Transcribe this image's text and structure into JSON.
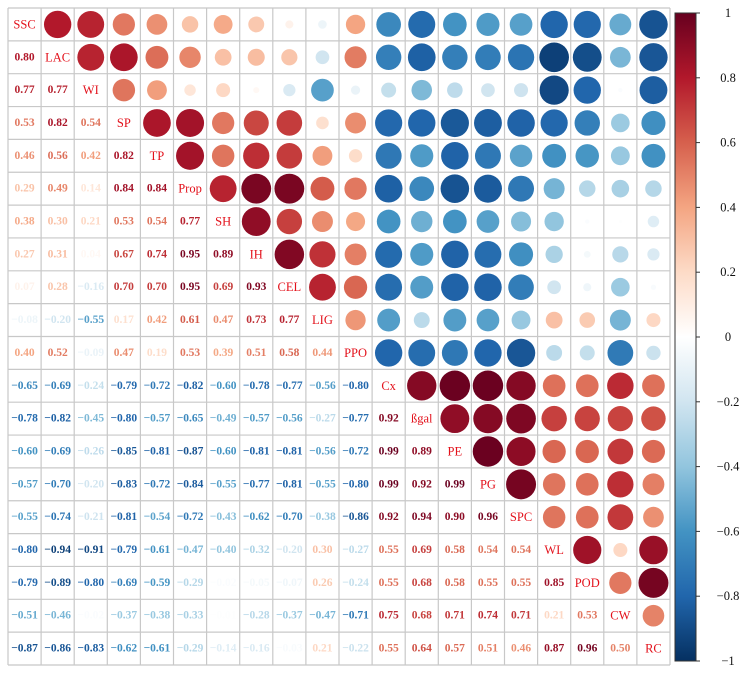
{
  "chart_data": {
    "type": "heatmap",
    "variables": [
      "SSC",
      "LAC",
      "WI",
      "SP",
      "TP",
      "Prop",
      "SH",
      "IH",
      "CEL",
      "LIG",
      "PPO",
      "Cx",
      "ßgal",
      "PE",
      "PG",
      "SPC",
      "WL",
      "POD",
      "CW",
      "RC"
    ],
    "lower_triangle_labels": [
      [],
      [
        "0.80"
      ],
      [
        "0.77",
        "0.77"
      ],
      [
        "0.53",
        "0.82",
        "0.54"
      ],
      [
        "0.46",
        "0.56",
        "0.42",
        "0.82"
      ],
      [
        "0.29",
        "0.49",
        "0.14",
        "0.84",
        "0.84"
      ],
      [
        "0.38",
        "0.30",
        "0.21",
        "0.53",
        "0.54",
        "0.77"
      ],
      [
        "0.27",
        "0.31",
        "0.04",
        "0.67",
        "0.74",
        "0.95",
        "0.89"
      ],
      [
        "0.07",
        "0.28",
        "−0.16",
        "0.70",
        "0.70",
        "0.95",
        "0.69",
        "0.93"
      ],
      [
        "−0.08",
        "−0.20",
        "−0.55",
        "0.17",
        "0.42",
        "0.61",
        "0.47",
        "0.73",
        "0.77"
      ],
      [
        "0.40",
        "0.52",
        "−0.09",
        "0.47",
        "0.19",
        "0.53",
        "0.39",
        "0.51",
        "0.58",
        "0.44"
      ],
      [
        "−0.65",
        "−0.69",
        "−0.24",
        "−0.79",
        "−0.72",
        "−0.82",
        "−0.60",
        "−0.78",
        "−0.77",
        "−0.56",
        "−0.80"
      ],
      [
        "−0.78",
        "−0.82",
        "−0.45",
        "−0.80",
        "−0.57",
        "−0.65",
        "−0.49",
        "−0.57",
        "−0.56",
        "−0.27",
        "−0.77",
        "0.92"
      ],
      [
        "−0.60",
        "−0.69",
        "−0.26",
        "−0.85",
        "−0.81",
        "−0.87",
        "−0.60",
        "−0.81",
        "−0.81",
        "−0.56",
        "−0.72",
        "0.99",
        "0.89"
      ],
      [
        "−0.57",
        "−0.70",
        "−0.20",
        "−0.83",
        "−0.72",
        "−0.84",
        "−0.55",
        "−0.77",
        "−0.81",
        "−0.55",
        "−0.80",
        "0.99",
        "0.92",
        "0.99"
      ],
      [
        "−0.55",
        "−0.74",
        "−0.21",
        "−0.81",
        "−0.54",
        "−0.72",
        "−0.43",
        "−0.62",
        "−0.70",
        "−0.38",
        "−0.86",
        "0.92",
        "0.94",
        "0.90",
        "0.96"
      ],
      [
        "−0.80",
        "−0.94",
        "−0.91",
        "−0.79",
        "−0.61",
        "−0.47",
        "−0.40",
        "−0.32",
        "−0.20",
        "0.30",
        "−0.27",
        "0.55",
        "0.69",
        "0.58",
        "0.54",
        "0.54"
      ],
      [
        "−0.79",
        "−0.89",
        "−0.80",
        "−0.69",
        "−0.59",
        "−0.29",
        "−0.02",
        "−0.05",
        "−0.07",
        "0.26",
        "−0.24",
        "0.55",
        "0.68",
        "0.58",
        "0.55",
        "0.55",
        "0.85"
      ],
      [
        "−0.51",
        "−0.46",
        "−0.02",
        "−0.37",
        "−0.38",
        "−0.33",
        "−0.01",
        "−0.28",
        "−0.37",
        "−0.47",
        "−0.71",
        "0.75",
        "0.68",
        "0.71",
        "0.74",
        "0.71",
        "0.21",
        "0.53"
      ],
      [
        "−0.87",
        "−0.86",
        "−0.83",
        "−0.62",
        "−0.61",
        "−0.29",
        "−0.14",
        "−0.16",
        "−0.03",
        "0.21",
        "−0.22",
        "0.55",
        "0.64",
        "0.57",
        "0.51",
        "0.46",
        "0.87",
        "0.96",
        "0.50"
      ]
    ],
    "colorbar": {
      "range": [
        -1,
        1
      ],
      "tick_labels": [
        "1",
        "0.8",
        "0.6",
        "0.4",
        "0.2",
        "0",
        "−0.2",
        "−0.4",
        "−0.6",
        "−0.8",
        "−1"
      ],
      "colors": [
        "#67001f",
        "#b2182b",
        "#d6604d",
        "#f4a582",
        "#fddbc7",
        "#ffffff",
        "#d1e5f0",
        "#92c5de",
        "#4393c3",
        "#2166ac",
        "#053061"
      ]
    },
    "upper_shape": "circle",
    "lower_shape": "number",
    "grid": true
  }
}
